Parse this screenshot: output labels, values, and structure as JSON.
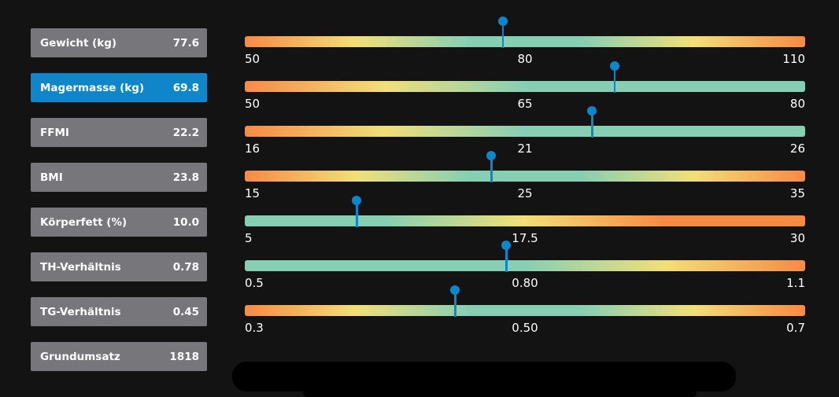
{
  "colors": {
    "background": "#141314",
    "metric_box": "#77767a",
    "metric_box_active": "#0e86c9",
    "marker": "#0e86c9",
    "gradient_orange": "#f78a45",
    "gradient_yellow": "#f2df78",
    "gradient_teal": "#86cfb4"
  },
  "metrics": [
    {
      "label": "Gewicht (kg)",
      "value": "77.6",
      "active": false
    },
    {
      "label": "Magermasse (kg)",
      "value": "69.8",
      "active": true
    },
    {
      "label": "FFMI",
      "value": "22.2",
      "active": false
    },
    {
      "label": "BMI",
      "value": "23.8",
      "active": false
    },
    {
      "label": "Körperfett (%)",
      "value": "10.0",
      "active": false
    },
    {
      "label": "TH-Verhältnis",
      "value": "0.78",
      "active": false
    },
    {
      "label": "TG-Verhältnis",
      "value": "0.45",
      "active": false
    },
    {
      "label": "Grundumsatz",
      "value": "1818",
      "active": false
    }
  ],
  "scales": [
    {
      "min": "50",
      "mid": "80",
      "max": "110",
      "minValue": 50,
      "midValue": 80,
      "maxValue": 110,
      "value": 77.6,
      "gradient": [
        "orange",
        "yellow",
        "teal",
        "teal",
        "yellow",
        "orange"
      ]
    },
    {
      "min": "50",
      "mid": "65",
      "max": "80",
      "minValue": 50,
      "midValue": 65,
      "maxValue": 80,
      "value": 69.8,
      "gradient": [
        "orange",
        "yellow",
        "teal",
        "teal",
        "teal"
      ]
    },
    {
      "min": "16",
      "mid": "21",
      "max": "26",
      "minValue": 16,
      "midValue": 21,
      "maxValue": 26,
      "value": 22.2,
      "gradient": [
        "orange",
        "yellow",
        "teal",
        "teal",
        "teal"
      ]
    },
    {
      "min": "15",
      "mid": "25",
      "max": "35",
      "minValue": 15,
      "midValue": 25,
      "maxValue": 35,
      "value": 23.8,
      "gradient": [
        "orange",
        "yellow",
        "teal",
        "teal",
        "yellow",
        "orange"
      ]
    },
    {
      "min": "5",
      "mid": "17.5",
      "max": "30",
      "minValue": 5,
      "midValue": 17.5,
      "maxValue": 30,
      "value": 10.0,
      "gradient": [
        "teal",
        "teal",
        "yellow",
        "orange",
        "orange"
      ]
    },
    {
      "min": "0.5",
      "mid": "0.80",
      "max": "1.1",
      "minValue": 0.5,
      "midValue": 0.8,
      "maxValue": 1.1,
      "value": 0.78,
      "gradient": [
        "teal",
        "teal",
        "teal",
        "yellow",
        "orange"
      ]
    },
    {
      "min": "0.3",
      "mid": "0.50",
      "max": "0.7",
      "minValue": 0.3,
      "midValue": 0.5,
      "maxValue": 0.7,
      "value": 0.45,
      "gradient": [
        "orange",
        "yellow",
        "teal",
        "teal",
        "yellow",
        "orange"
      ]
    }
  ]
}
